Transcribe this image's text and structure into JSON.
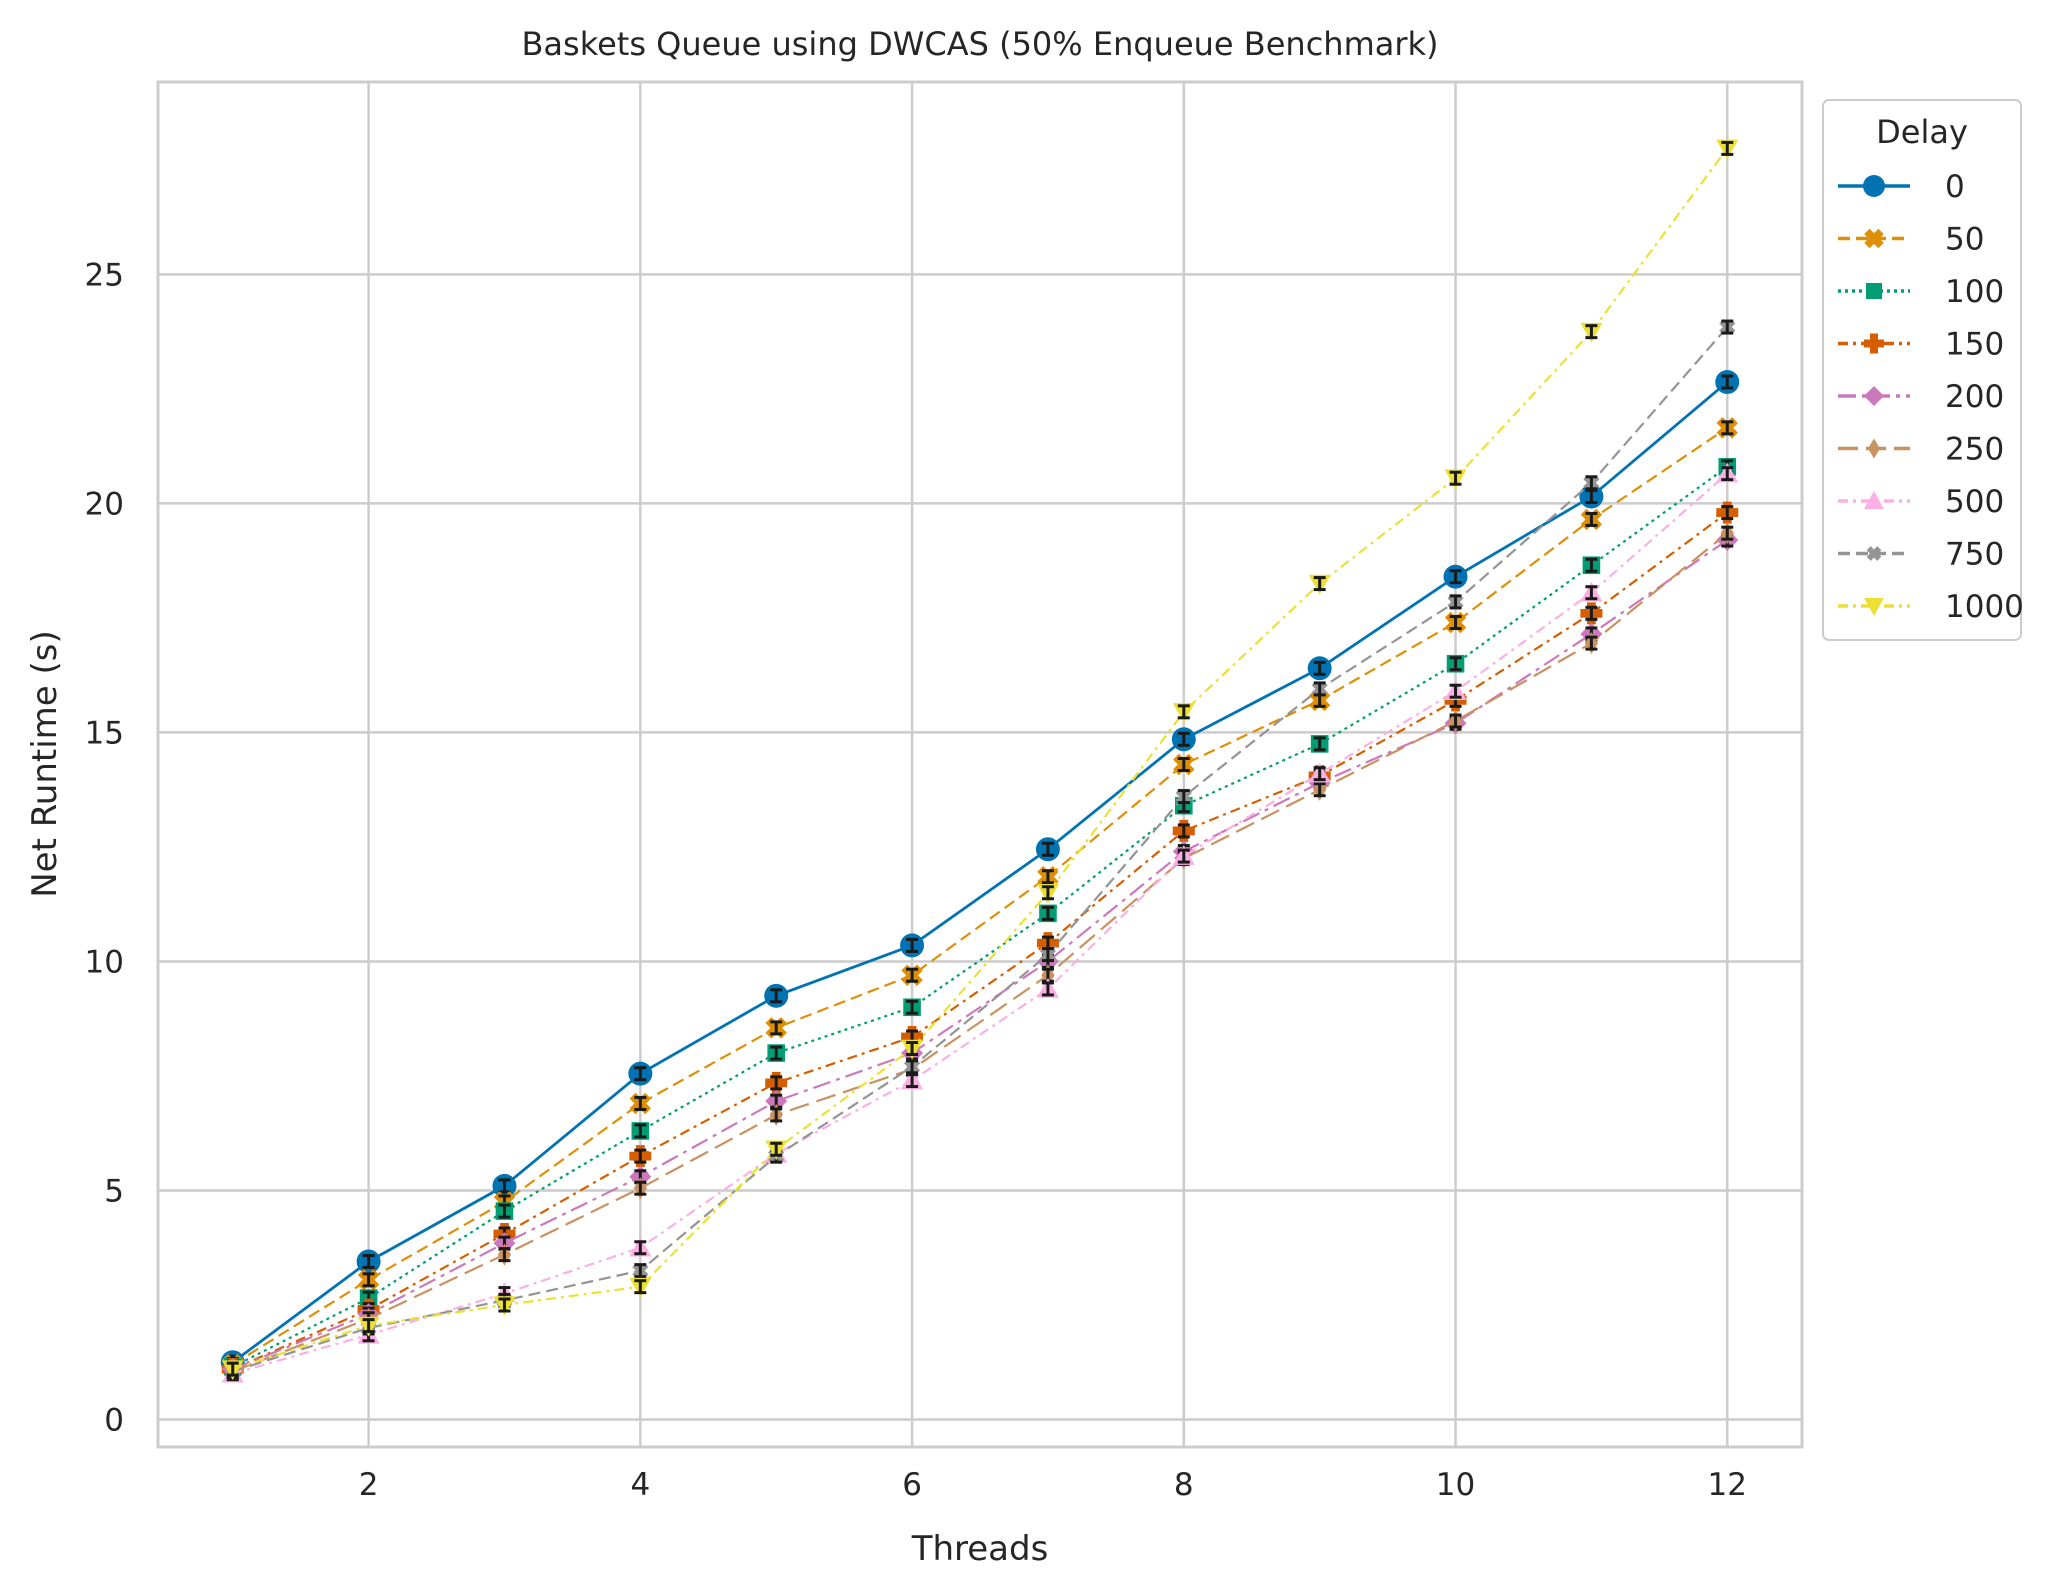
{
  "chart_data": {
    "type": "line",
    "title": "Baskets Queue using DWCAS (50% Enqueue Benchmark)",
    "xlabel": "Threads",
    "ylabel": "Net Runtime (s)",
    "xlim": [
      0.45,
      12.55
    ],
    "ylim": [
      -0.6,
      29.2
    ],
    "xticks": [
      2,
      4,
      6,
      8,
      10,
      12
    ],
    "yticks": [
      0,
      5,
      10,
      15,
      20,
      25
    ],
    "grid": true,
    "legend_title": "Delay",
    "legend_position": "outside-top-right",
    "x": [
      1,
      2,
      3,
      4,
      5,
      6,
      7,
      8,
      9,
      10,
      11,
      12
    ],
    "series": [
      {
        "name": "0",
        "color": "#0173b2",
        "marker": "circle",
        "dash": "solid",
        "values": [
          1.25,
          3.45,
          5.1,
          7.55,
          9.25,
          10.35,
          12.45,
          14.85,
          16.4,
          18.4,
          20.15,
          22.65
        ]
      },
      {
        "name": "50",
        "color": "#de8f05",
        "marker": "x",
        "dash": "dashed",
        "values": [
          1.2,
          3.05,
          4.75,
          6.9,
          8.55,
          9.7,
          11.85,
          14.3,
          15.7,
          17.4,
          19.65,
          21.65
        ]
      },
      {
        "name": "100",
        "color": "#029e73",
        "marker": "square",
        "dash": "dotted",
        "values": [
          1.15,
          2.65,
          4.55,
          6.3,
          8.0,
          9.0,
          11.05,
          13.4,
          14.75,
          16.5,
          18.65,
          20.8
        ]
      },
      {
        "name": "150",
        "color": "#d55e00",
        "marker": "plus",
        "dash": "dashdot",
        "values": [
          1.1,
          2.4,
          4.05,
          5.75,
          7.35,
          8.35,
          10.4,
          12.85,
          14.05,
          15.7,
          17.6,
          19.8
        ]
      },
      {
        "name": "200",
        "color": "#cc78bc",
        "marker": "diamond",
        "dash": "longdashdot",
        "values": [
          1.1,
          2.3,
          3.85,
          5.3,
          6.95,
          8.0,
          10.0,
          12.4,
          13.9,
          15.2,
          17.15,
          19.2
        ]
      },
      {
        "name": "250",
        "color": "#ca9161",
        "marker": "thin-diamond",
        "dash": "longdash",
        "values": [
          1.05,
          2.2,
          3.6,
          5.05,
          6.65,
          7.65,
          9.7,
          12.25,
          13.75,
          15.25,
          16.95,
          19.35
        ]
      },
      {
        "name": "500",
        "color": "#fbafe4",
        "marker": "triangle-up",
        "dash": "dashdot",
        "values": [
          1.0,
          1.85,
          2.75,
          3.75,
          5.8,
          7.4,
          9.4,
          12.3,
          14.1,
          15.9,
          18.05,
          20.65
        ]
      },
      {
        "name": "750",
        "color": "#949494",
        "marker": "x-small",
        "dash": "dashed",
        "values": [
          1.05,
          2.0,
          2.6,
          3.25,
          5.75,
          7.7,
          10.15,
          13.6,
          15.95,
          17.85,
          20.45,
          23.85
        ]
      },
      {
        "name": "1000",
        "color": "#ece133",
        "marker": "triangle-down",
        "dash": "dashdot",
        "values": [
          1.1,
          2.05,
          2.5,
          2.9,
          5.9,
          8.1,
          11.5,
          15.45,
          18.25,
          20.55,
          23.75,
          27.75
        ]
      }
    ]
  }
}
